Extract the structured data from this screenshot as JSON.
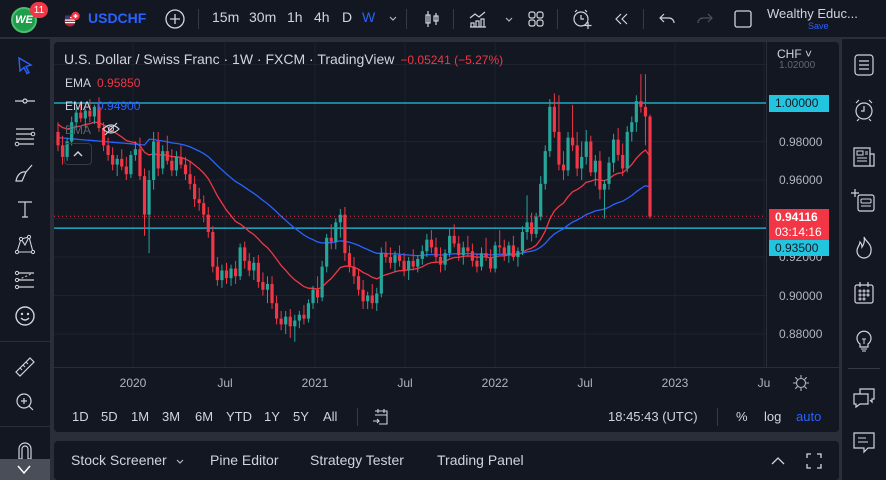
{
  "topbar": {
    "logo_text": "WE",
    "notification_count": "11",
    "symbol": "USDCHF",
    "intervals": [
      "15m",
      "30m",
      "1h",
      "4h",
      "D",
      "W"
    ],
    "active_interval": "W",
    "account_name": "Wealthy Educ...",
    "save_label": "Save"
  },
  "legend": {
    "title": "U.S. Dollar / Swiss Franc · 1W · FXCM · TradingView",
    "change": "−0.05241 (−5.27%)",
    "ema1_label": "EMA",
    "ema1_value": "0.95850",
    "ema2_label": "EMA",
    "ema2_value": "0.94900",
    "ema3_label": "EMA"
  },
  "price_axis": {
    "currency": "CHF",
    "labels": [
      "1.02000",
      "0.98000",
      "0.96000",
      "0.92000",
      "0.90000",
      "0.88000"
    ],
    "horizontal_line_1": "1.00000",
    "last_price": "0.94116",
    "countdown": "03:14:16",
    "horizontal_line_2": "0.93500"
  },
  "time_axis": {
    "labels": [
      "2020",
      "Jul",
      "2021",
      "Jul",
      "2022",
      "Jul",
      "2023",
      "Ju"
    ]
  },
  "bottom_toolbar": {
    "ranges": [
      "1D",
      "5D",
      "1M",
      "3M",
      "6M",
      "YTD",
      "1Y",
      "5Y",
      "All"
    ],
    "clock": "18:45:43 (UTC)",
    "percent_label": "%",
    "log_label": "log",
    "auto_label": "auto"
  },
  "bottom_panel": {
    "tabs": [
      "Stock Screener",
      "Pine Editor",
      "Strategy Tester",
      "Trading Panel"
    ]
  },
  "colors": {
    "up": "#26a69a",
    "down": "#f23645",
    "ema_fast": "#f23645",
    "ema_slow": "#2962ff",
    "hline": "#22c5e0",
    "accent": "#2962ff"
  },
  "chart_data": {
    "type": "candlestick",
    "title": "U.S. Dollar / Swiss Franc · 1W · FXCM · TradingView",
    "xlabel": "",
    "ylabel": "CHF",
    "ylim": [
      0.872,
      1.023
    ],
    "x_ticks": [
      "2020",
      "Jul",
      "2021",
      "Jul",
      "2022",
      "Jul",
      "2023",
      "Ju"
    ],
    "y_ticks": [
      0.88,
      0.9,
      0.92,
      0.96,
      0.98,
      1.0
    ],
    "horizontal_lines": [
      1.0,
      0.935
    ],
    "last_price": 0.94116,
    "series": [
      {
        "name": "EMA (fast)",
        "value": 0.9585,
        "color": "#f23645"
      },
      {
        "name": "EMA (slow)",
        "value": 0.949,
        "color": "#2962ff"
      }
    ],
    "ohlc": [
      [
        0.985,
        0.99,
        0.975,
        0.978
      ],
      [
        0.978,
        0.983,
        0.968,
        0.972
      ],
      [
        0.972,
        0.982,
        0.97,
        0.98
      ],
      [
        0.98,
        0.993,
        0.978,
        0.99
      ],
      [
        0.99,
        0.998,
        0.986,
        0.995
      ],
      [
        0.995,
        1.0,
        0.99,
        0.992
      ],
      [
        0.992,
        0.997,
        0.987,
        0.996
      ],
      [
        0.996,
        1.002,
        0.99,
        0.993
      ],
      [
        0.993,
        0.999,
        0.989,
        0.998
      ],
      [
        0.998,
        1.003,
        0.985,
        0.987
      ],
      [
        0.987,
        0.99,
        0.975,
        0.978
      ],
      [
        0.978,
        0.982,
        0.97,
        0.973
      ],
      [
        0.973,
        0.977,
        0.965,
        0.968
      ],
      [
        0.968,
        0.973,
        0.962,
        0.971
      ],
      [
        0.971,
        0.976,
        0.965,
        0.967
      ],
      [
        0.967,
        0.972,
        0.96,
        0.963
      ],
      [
        0.963,
        0.975,
        0.961,
        0.973
      ],
      [
        0.973,
        0.98,
        0.97,
        0.976
      ],
      [
        0.976,
        0.982,
        0.96,
        0.962
      ],
      [
        0.962,
        0.966,
        0.931,
        0.942
      ],
      [
        0.942,
        0.965,
        0.922,
        0.96
      ],
      [
        0.96,
        0.985,
        0.955,
        0.98
      ],
      [
        0.98,
        0.985,
        0.962,
        0.966
      ],
      [
        0.966,
        0.978,
        0.963,
        0.975
      ],
      [
        0.975,
        0.983,
        0.968,
        0.97
      ],
      [
        0.97,
        0.976,
        0.962,
        0.965
      ],
      [
        0.965,
        0.975,
        0.962,
        0.972
      ],
      [
        0.972,
        0.978,
        0.966,
        0.968
      ],
      [
        0.968,
        0.972,
        0.96,
        0.963
      ],
      [
        0.963,
        0.97,
        0.955,
        0.958
      ],
      [
        0.958,
        0.962,
        0.946,
        0.95
      ],
      [
        0.95,
        0.956,
        0.944,
        0.948
      ],
      [
        0.948,
        0.952,
        0.938,
        0.942
      ],
      [
        0.942,
        0.946,
        0.93,
        0.933
      ],
      [
        0.933,
        0.936,
        0.912,
        0.915
      ],
      [
        0.915,
        0.92,
        0.905,
        0.908
      ],
      [
        0.908,
        0.916,
        0.904,
        0.913
      ],
      [
        0.913,
        0.917,
        0.906,
        0.909
      ],
      [
        0.909,
        0.916,
        0.905,
        0.914
      ],
      [
        0.914,
        0.918,
        0.906,
        0.91
      ],
      [
        0.91,
        0.927,
        0.908,
        0.925
      ],
      [
        0.925,
        0.928,
        0.914,
        0.918
      ],
      [
        0.918,
        0.922,
        0.91,
        0.913
      ],
      [
        0.913,
        0.92,
        0.908,
        0.917
      ],
      [
        0.917,
        0.921,
        0.904,
        0.907
      ],
      [
        0.907,
        0.912,
        0.9,
        0.903
      ],
      [
        0.903,
        0.91,
        0.896,
        0.906
      ],
      [
        0.906,
        0.91,
        0.893,
        0.896
      ],
      [
        0.896,
        0.9,
        0.885,
        0.888
      ],
      [
        0.888,
        0.892,
        0.882,
        0.885
      ],
      [
        0.885,
        0.892,
        0.88,
        0.889
      ],
      [
        0.889,
        0.893,
        0.878,
        0.884
      ],
      [
        0.884,
        0.89,
        0.876,
        0.887
      ],
      [
        0.887,
        0.892,
        0.883,
        0.89
      ],
      [
        0.89,
        0.895,
        0.885,
        0.888
      ],
      [
        0.888,
        0.898,
        0.886,
        0.896
      ],
      [
        0.896,
        0.905,
        0.893,
        0.903
      ],
      [
        0.903,
        0.91,
        0.896,
        0.899
      ],
      [
        0.899,
        0.918,
        0.897,
        0.915
      ],
      [
        0.915,
        0.932,
        0.912,
        0.93
      ],
      [
        0.93,
        0.937,
        0.924,
        0.928
      ],
      [
        0.928,
        0.94,
        0.924,
        0.938
      ],
      [
        0.938,
        0.945,
        0.93,
        0.942
      ],
      [
        0.942,
        0.946,
        0.918,
        0.922
      ],
      [
        0.922,
        0.926,
        0.912,
        0.915
      ],
      [
        0.915,
        0.92,
        0.906,
        0.91
      ],
      [
        0.91,
        0.914,
        0.9,
        0.903
      ],
      [
        0.903,
        0.908,
        0.893,
        0.897
      ],
      [
        0.897,
        0.902,
        0.893,
        0.9
      ],
      [
        0.9,
        0.906,
        0.893,
        0.896
      ],
      [
        0.896,
        0.904,
        0.892,
        0.901
      ],
      [
        0.901,
        0.925,
        0.899,
        0.922
      ],
      [
        0.922,
        0.928,
        0.917,
        0.92
      ],
      [
        0.92,
        0.925,
        0.914,
        0.917
      ],
      [
        0.917,
        0.923,
        0.912,
        0.921
      ],
      [
        0.921,
        0.926,
        0.915,
        0.918
      ],
      [
        0.918,
        0.922,
        0.91,
        0.913
      ],
      [
        0.913,
        0.92,
        0.908,
        0.918
      ],
      [
        0.918,
        0.924,
        0.913,
        0.915
      ],
      [
        0.915,
        0.921,
        0.912,
        0.919
      ],
      [
        0.919,
        0.926,
        0.916,
        0.923
      ],
      [
        0.923,
        0.932,
        0.92,
        0.929
      ],
      [
        0.929,
        0.934,
        0.922,
        0.925
      ],
      [
        0.925,
        0.93,
        0.917,
        0.92
      ],
      [
        0.92,
        0.925,
        0.912,
        0.916
      ],
      [
        0.916,
        0.924,
        0.913,
        0.922
      ],
      [
        0.922,
        0.935,
        0.92,
        0.931
      ],
      [
        0.931,
        0.937,
        0.925,
        0.927
      ],
      [
        0.927,
        0.931,
        0.918,
        0.921
      ],
      [
        0.921,
        0.928,
        0.916,
        0.925
      ],
      [
        0.925,
        0.931,
        0.92,
        0.923
      ],
      [
        0.923,
        0.927,
        0.915,
        0.918
      ],
      [
        0.918,
        0.922,
        0.912,
        0.915
      ],
      [
        0.915,
        0.925,
        0.913,
        0.922
      ],
      [
        0.922,
        0.93,
        0.918,
        0.92
      ],
      [
        0.92,
        0.924,
        0.912,
        0.914
      ],
      [
        0.914,
        0.928,
        0.912,
        0.926
      ],
      [
        0.926,
        0.934,
        0.922,
        0.925
      ],
      [
        0.925,
        0.929,
        0.918,
        0.921
      ],
      [
        0.921,
        0.928,
        0.917,
        0.926
      ],
      [
        0.926,
        0.931,
        0.918,
        0.92
      ],
      [
        0.92,
        0.925,
        0.915,
        0.923
      ],
      [
        0.923,
        0.936,
        0.921,
        0.933
      ],
      [
        0.933,
        0.952,
        0.929,
        0.938
      ],
      [
        0.938,
        0.943,
        0.928,
        0.932
      ],
      [
        0.932,
        0.943,
        0.93,
        0.941
      ],
      [
        0.941,
        0.962,
        0.939,
        0.958
      ],
      [
        0.958,
        0.978,
        0.955,
        0.975
      ],
      [
        0.975,
        1.002,
        0.972,
        0.998
      ],
      [
        0.998,
        1.005,
        0.982,
        0.985
      ],
      [
        0.985,
        1.004,
        0.965,
        0.968
      ],
      [
        0.968,
        0.975,
        0.96,
        0.965
      ],
      [
        0.965,
        0.985,
        0.962,
        0.982
      ],
      [
        0.982,
        0.999,
        0.975,
        0.978
      ],
      [
        0.978,
        0.985,
        0.962,
        0.966
      ],
      [
        0.966,
        0.98,
        0.96,
        0.972
      ],
      [
        0.972,
        0.986,
        0.968,
        0.98
      ],
      [
        0.98,
        0.983,
        0.962,
        0.964
      ],
      [
        0.964,
        0.973,
        0.957,
        0.97
      ],
      [
        0.97,
        0.975,
        0.95,
        0.955
      ],
      [
        0.955,
        0.96,
        0.94,
        0.958
      ],
      [
        0.958,
        0.972,
        0.955,
        0.969
      ],
      [
        0.969,
        0.984,
        0.964,
        0.981
      ],
      [
        0.981,
        0.987,
        0.97,
        0.973
      ],
      [
        0.973,
        0.979,
        0.962,
        0.966
      ],
      [
        0.966,
        0.988,
        0.964,
        0.985
      ],
      [
        0.985,
        0.993,
        0.98,
        0.99
      ],
      [
        0.99,
        1.004,
        0.985,
        1.001
      ],
      [
        1.001,
        1.015,
        0.995,
        0.998
      ],
      [
        0.998,
        1.015,
        0.978,
        0.993
      ],
      [
        0.993,
        0.994,
        0.94,
        0.941
      ]
    ]
  }
}
